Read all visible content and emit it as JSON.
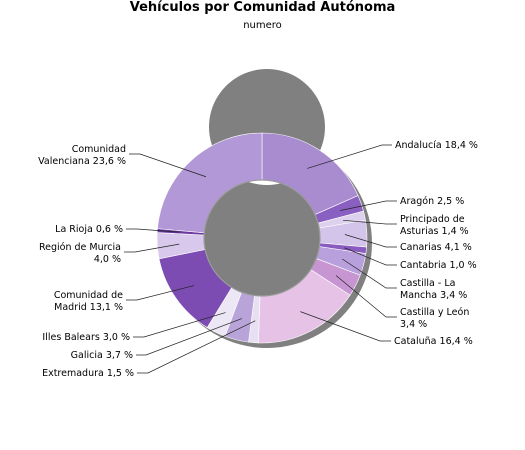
{
  "chart_data": {
    "type": "pie",
    "variant": "donut",
    "title": "Vehículos por Comunidad Autónoma",
    "subtitle": "numero",
    "slices": [
      {
        "label": "Andalucía",
        "value": 18.4,
        "value_text": "18,4 %",
        "color": "#a98bd0"
      },
      {
        "label": "Aragón",
        "value": 2.5,
        "value_text": "2,5 %",
        "color": "#8a5fc2"
      },
      {
        "label": "Principado de Asturias",
        "value": 1.4,
        "value_text": "1,4 %",
        "color": "#ddd1ee"
      },
      {
        "label": "Canarias",
        "value": 4.1,
        "value_text": "4,1 %",
        "color": "#d3c4ea"
      },
      {
        "label": "Cantabria",
        "value": 1.0,
        "value_text": "1,0 %",
        "color": "#8a5cc0"
      },
      {
        "label": "Castilla - La Mancha",
        "value": 3.4,
        "value_text": "3,4 %",
        "color": "#b8a0dc"
      },
      {
        "label": "Castilla y León",
        "value": 3.4,
        "value_text": "3,4 %",
        "color": "#c895d3"
      },
      {
        "label": "Cataluña",
        "value": 16.4,
        "value_text": "16,4 %",
        "color": "#e6c3e6"
      },
      {
        "label": "Extremadura",
        "value": 1.5,
        "value_text": "1,5 %",
        "color": "#e8dff3"
      },
      {
        "label": "Galicia",
        "value": 3.7,
        "value_text": "3,7 %",
        "color": "#b9a4da"
      },
      {
        "label": "Illes Balears",
        "value": 3.0,
        "value_text": "3,0 %",
        "color": "#ece6f5"
      },
      {
        "label": "Comunidad de Madrid",
        "value": 13.1,
        "value_text": "13,1 %",
        "color": "#7c4cb3"
      },
      {
        "label": "Región de Murcia",
        "value": 4.0,
        "value_text": "4,0 %",
        "color": "#d8c9ec"
      },
      {
        "label": "La Rioja",
        "value": 0.6,
        "value_text": "0,6 %",
        "color": "#6a3aa0"
      },
      {
        "label": "Comunidad Valenciana",
        "value": 23.6,
        "value_text": "23,6 %",
        "color": "#b298d6"
      }
    ],
    "callouts": [
      {
        "lines": [
          "Andalucía 18,4 %"
        ]
      },
      {
        "lines": [
          "Aragón 2,5 %"
        ]
      },
      {
        "lines": [
          "Principado de",
          "Asturias 1,4 %"
        ]
      },
      {
        "lines": [
          "Canarias 4,1 %"
        ]
      },
      {
        "lines": [
          "Cantabria 1,0 %"
        ]
      },
      {
        "lines": [
          "Castilla - La",
          "Mancha 3,4 %"
        ]
      },
      {
        "lines": [
          "Castilla y León",
          "3,4 %"
        ]
      },
      {
        "lines": [
          "Cataluña 16,4 %"
        ]
      },
      {
        "lines": [
          "Extremadura 1,5 %"
        ]
      },
      {
        "lines": [
          "Galicia 3,7 %"
        ]
      },
      {
        "lines": [
          "Illes Balears 3,0 %"
        ]
      },
      {
        "lines": [
          "Comunidad de",
          "Madrid 13,1 %"
        ]
      },
      {
        "lines": [
          "Región de Murcia",
          "4,0 %"
        ]
      },
      {
        "lines": [
          "La Rioja 0,6 %"
        ]
      },
      {
        "lines": [
          "Comunidad",
          "Valenciana 23,6 %"
        ]
      }
    ],
    "legend": "none",
    "shadow_color": "#808080"
  }
}
